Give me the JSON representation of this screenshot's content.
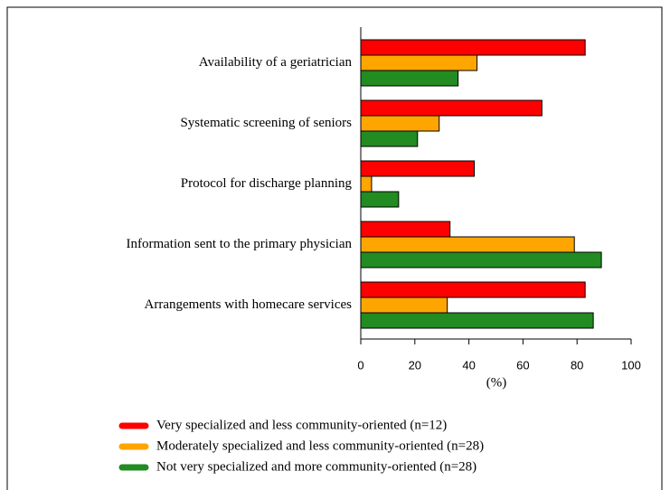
{
  "chart_data": {
    "type": "hbar",
    "categories": [
      "Availability  of a geriatrician",
      "Systematic screening of seniors",
      "Protocol for discharge planning",
      "Information sent to the primary physician",
      "Arrangements with homecare services"
    ],
    "series": [
      {
        "name": "Very specialized and less community-oriented (n=12)",
        "color": "#ff0000",
        "values": [
          83,
          67,
          42,
          33,
          83
        ]
      },
      {
        "name": "Moderately specialized and less community-oriented (n=28)",
        "color": "#ffa500",
        "values": [
          43,
          29,
          4,
          79,
          32
        ]
      },
      {
        "name": "Not very specialized and more community-oriented (n=28)",
        "color": "#228b22",
        "values": [
          36,
          21,
          14,
          89,
          86
        ]
      }
    ],
    "xlabel": "(%)",
    "xlim": [
      0,
      100
    ],
    "xticks": [
      0,
      20,
      40,
      60,
      80,
      100
    ]
  }
}
